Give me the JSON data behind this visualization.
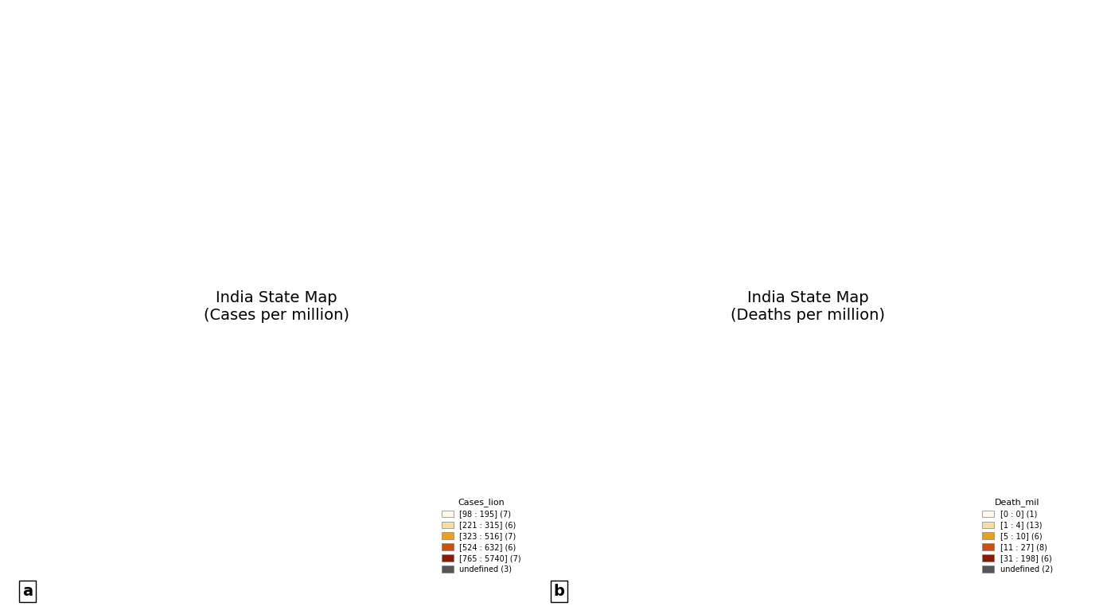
{
  "title_a": "a",
  "title_b": "b",
  "legend_a_title": "Cases_lion",
  "legend_b_title": "Death_mil",
  "legend_a": [
    {
      "label": "[98 : 195] (7)",
      "color": "#FFF8E7"
    },
    {
      "label": "[221 : 315] (6)",
      "color": "#F5DFA0"
    },
    {
      "label": "[323 : 516] (7)",
      "color": "#E8A020"
    },
    {
      "label": "[524 : 632] (6)",
      "color": "#C85010"
    },
    {
      "label": "[765 : 5740] (7)",
      "color": "#8B1A00"
    },
    {
      "label": "undefined (3)",
      "color": "#555555"
    }
  ],
  "legend_b": [
    {
      "label": "[0 : 0] (1)",
      "color": "#FFF8E7"
    },
    {
      "label": "[1 : 4] (13)",
      "color": "#F5DFA0"
    },
    {
      "label": "[5 : 10] (6)",
      "color": "#E8A020"
    },
    {
      "label": "[11 : 27] (8)",
      "color": "#C85010"
    },
    {
      "label": "[31 : 198] (6)",
      "color": "#8B1A00"
    },
    {
      "label": "undefined (2)",
      "color": "#555555"
    }
  ],
  "background_color": "#FFFFFF",
  "border_color": "#FFFFFF",
  "state_border": "#CCCCCC",
  "fig_bg": "#FFFFFF"
}
